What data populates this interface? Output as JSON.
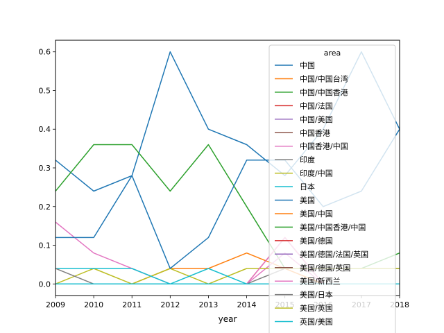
{
  "chart_data": {
    "type": "line",
    "title": "",
    "xlabel": "year",
    "ylabel": "",
    "x": [
      2009,
      2010,
      2011,
      2012,
      2013,
      2014,
      2015,
      2016,
      2017,
      2018
    ],
    "xlim": [
      2009,
      2018
    ],
    "ylim": [
      -0.03,
      0.63
    ],
    "x_ticks": [
      "2009",
      "2010",
      "2011",
      "2012",
      "2013",
      "2014",
      "2015",
      "2016",
      "2017",
      "2018"
    ],
    "y_ticks": [
      "0.0",
      "0.1",
      "0.2",
      "0.3",
      "0.4",
      "0.5",
      "0.6"
    ],
    "y_tick_values": [
      0.0,
      0.1,
      0.2,
      0.3,
      0.4,
      0.5,
      0.6
    ],
    "grid": false,
    "legend": {
      "title": "area",
      "placement": "top-right"
    },
    "series": [
      {
        "name": "中国",
        "color": "#1f77b4",
        "values": [
          0.32,
          0.24,
          0.28,
          0.6,
          0.4,
          0.36,
          0.28,
          0.4,
          0.6,
          0.4
        ]
      },
      {
        "name": "中国/中国台湾",
        "color": "#ff7f0e",
        "values": [
          0,
          0,
          0,
          0.04,
          0.04,
          0.08,
          0.04,
          0,
          0,
          0
        ]
      },
      {
        "name": "中国/中国香港",
        "color": "#2ca02c",
        "values": [
          0.24,
          0.36,
          0.36,
          0.24,
          0.36,
          0.2,
          0.04,
          0.04,
          0.04,
          0.08
        ]
      },
      {
        "name": "中国/法国",
        "color": "#d62728",
        "values": [
          0,
          0,
          0,
          0,
          0,
          0,
          0,
          0,
          0,
          0
        ]
      },
      {
        "name": "中国/美国",
        "color": "#9467bd",
        "values": [
          0,
          0,
          0,
          0,
          0,
          0,
          0,
          0,
          0,
          0
        ]
      },
      {
        "name": "中国香港",
        "color": "#8c564b",
        "values": [
          0,
          0,
          0,
          0,
          0,
          0,
          0,
          0,
          0,
          0
        ]
      },
      {
        "name": "中国香港/中国",
        "color": "#e377c2",
        "values": [
          0.16,
          0.08,
          0.04,
          0,
          0,
          0,
          0.08,
          0,
          0,
          0
        ]
      },
      {
        "name": "印度",
        "color": "#7f7f7f",
        "values": [
          0,
          0,
          0,
          0,
          0,
          0,
          0.04,
          0.04,
          0.04,
          0.04
        ]
      },
      {
        "name": "印度/中国",
        "color": "#bcbd22",
        "values": [
          0,
          0.04,
          0,
          0.04,
          0,
          0.04,
          0.04,
          0.04,
          0.04,
          0.04
        ]
      },
      {
        "name": "日本",
        "color": "#17becf",
        "values": [
          0.04,
          0.04,
          0.04,
          0,
          0.04,
          0,
          0,
          0,
          0,
          0
        ]
      },
      {
        "name": "美国",
        "color": "#1f77b4",
        "values": [
          0.12,
          0.12,
          0.28,
          0.04,
          0.12,
          0.32,
          0.32,
          0.2,
          0.24,
          0.4
        ]
      },
      {
        "name": "美国/中国",
        "color": "#ff7f0e",
        "values": [
          0,
          0,
          0,
          0,
          0,
          0,
          0,
          0,
          0,
          0
        ]
      },
      {
        "name": "美国/中国香港/中国",
        "color": "#2ca02c",
        "values": [
          0,
          0,
          0,
          0,
          0,
          0,
          0,
          0,
          0,
          0
        ]
      },
      {
        "name": "美国/德国",
        "color": "#d62728",
        "values": [
          0,
          0,
          0,
          0,
          0,
          0,
          0.12,
          0,
          0,
          0
        ]
      },
      {
        "name": "美国/德国/法国/英国",
        "color": "#9467bd",
        "values": [
          0,
          0,
          0,
          0,
          0,
          0,
          0,
          0,
          0,
          0
        ]
      },
      {
        "name": "美国/德国/英国",
        "color": "#8c564b",
        "values": [
          0,
          0,
          0,
          0,
          0,
          0,
          0,
          0,
          0,
          0
        ]
      },
      {
        "name": "美国/新西兰",
        "color": "#e377c2",
        "values": [
          0,
          0,
          0,
          0,
          0,
          0,
          0.12,
          0,
          0,
          0
        ]
      },
      {
        "name": "美国/日本",
        "color": "#7f7f7f",
        "values": [
          0.04,
          0,
          0,
          0,
          0,
          0,
          0,
          0,
          0,
          0
        ]
      },
      {
        "name": "美国/英国",
        "color": "#bcbd22",
        "values": [
          0,
          0,
          0,
          0,
          0,
          0,
          0,
          0,
          0,
          0
        ]
      },
      {
        "name": "英国/美国",
        "color": "#17becf",
        "values": [
          0,
          0,
          0,
          0,
          0,
          0,
          0,
          0,
          0,
          0
        ]
      }
    ]
  }
}
